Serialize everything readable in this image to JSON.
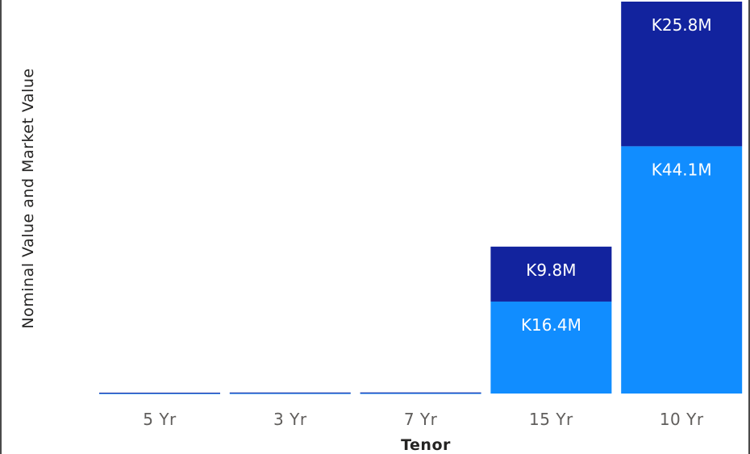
{
  "chart_data": {
    "type": "bar",
    "stacked": true,
    "categories": [
      "5 Yr",
      "3 Yr",
      "7 Yr",
      "15 Yr",
      "10 Yr"
    ],
    "series": [
      {
        "values": [
          0.05,
          0.06,
          0.07,
          16.4,
          44.1
        ],
        "labels": [
          "",
          "",
          "",
          "K16.4M",
          "K44.1M"
        ],
        "color": "#118dff"
      },
      {
        "values": [
          0.1,
          0.12,
          0.12,
          9.8,
          25.8
        ],
        "labels": [
          "",
          "",
          "",
          "K9.8M",
          "K25.8M"
        ],
        "color": "#12239e"
      }
    ],
    "xlabel": "Tenor",
    "ylabel": "Nominal Value and Market Value",
    "ylim": [
      0,
      69.9
    ],
    "grid": false,
    "legend": "none"
  }
}
